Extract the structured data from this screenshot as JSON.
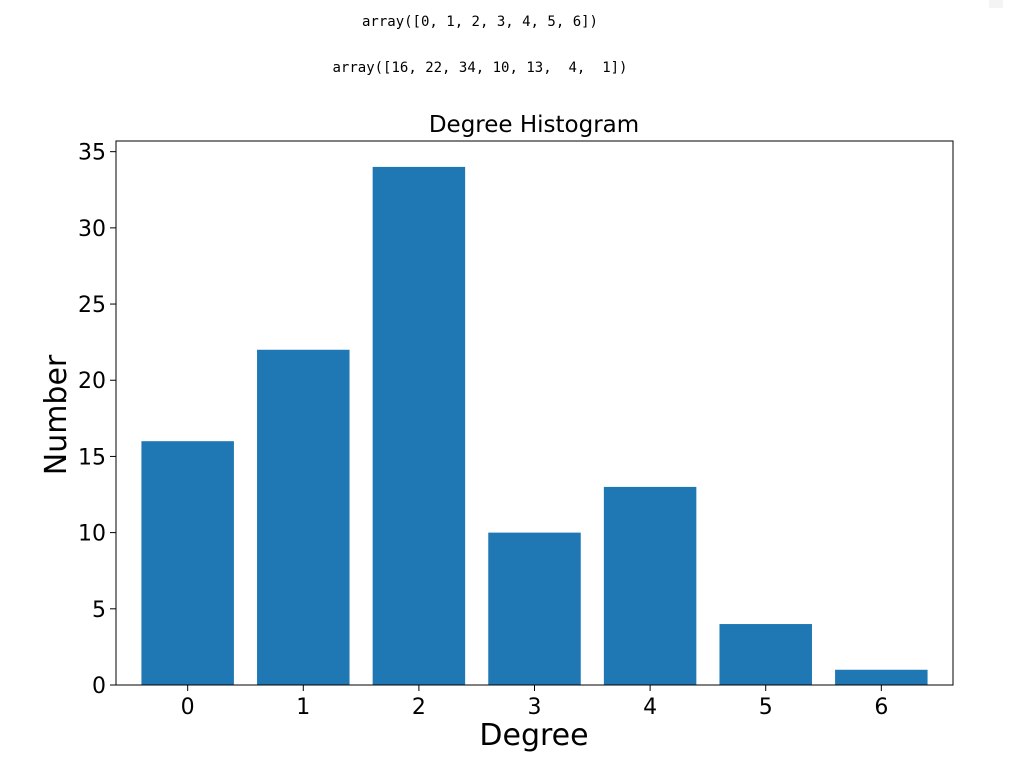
{
  "output": {
    "line1": "array([0, 1, 2, 3, 4, 5, 6])",
    "line2": "array([16, 22, 34, 10, 13,  4,  1])"
  },
  "chart_data": {
    "type": "bar",
    "title": "Degree Histogram",
    "xlabel": "Degree",
    "ylabel": "Number",
    "categories": [
      "0",
      "1",
      "2",
      "3",
      "4",
      "5",
      "6"
    ],
    "values": [
      16,
      22,
      34,
      10,
      13,
      4,
      1
    ],
    "ylim": [
      0,
      35.7
    ],
    "yticks": [
      0,
      5,
      10,
      15,
      20,
      25,
      30,
      35
    ],
    "grid": false,
    "bar_color": "#1f77b4"
  }
}
